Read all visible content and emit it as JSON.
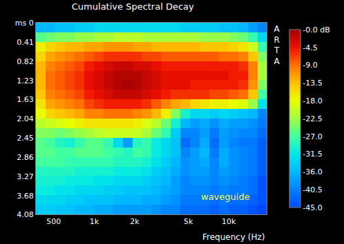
{
  "chart_data": {
    "type": "heatmap",
    "title": "Cumulative Spectral Decay",
    "x_label": "Frequency (Hz)",
    "annotations": [
      "ARTA",
      "waveguide"
    ],
    "log": "x",
    "grid": true,
    "x": [
      369,
      435,
      513,
      605,
      713,
      841,
      992,
      1170,
      1380,
      1627,
      1919,
      2263,
      2669,
      3148,
      3712,
      4378,
      5163,
      6089,
      7181,
      8469,
      9988,
      11779,
      13892,
      16383,
      19100
    ],
    "y": [
      0,
      0.204,
      0.408,
      0.612,
      0.816,
      1.02,
      1.224,
      1.428,
      1.632,
      1.836,
      2.04,
      2.244,
      2.448,
      2.652,
      2.856,
      3.06,
      3.264,
      3.468,
      3.672,
      3.876,
      4.08
    ],
    "cells": [
      [
        -36,
        -36,
        -35,
        -35,
        -34,
        -34,
        -33,
        -33,
        -33,
        -33,
        -33,
        -33,
        -33,
        -33,
        -33,
        -34,
        -34,
        -34,
        -34,
        -35,
        -35,
        -36,
        -38,
        -40
      ],
      [
        -26,
        -25,
        -24,
        -24,
        -23,
        -23,
        -22,
        -22,
        -21,
        -21,
        -21,
        -22,
        -22,
        -22,
        -22,
        -22,
        -22,
        -23,
        -23,
        -23,
        -24,
        -25,
        -28,
        -33
      ],
      [
        -17,
        -15,
        -14,
        -13,
        -13,
        -12,
        -12,
        -11,
        -11,
        -11,
        -12,
        -12,
        -13,
        -13,
        -13,
        -13,
        -13,
        -14,
        -14,
        -14,
        -15,
        -16,
        -20,
        -28
      ],
      [
        -15,
        -12,
        -11,
        -10,
        -9,
        -8,
        -7,
        -6,
        -6,
        -6,
        -6,
        -7,
        -7,
        -8,
        -8,
        -8,
        -8,
        -8,
        -8,
        -9,
        -9,
        -10,
        -14,
        -24
      ],
      [
        -13,
        -10,
        -9,
        -8,
        -7,
        -5,
        -4,
        -3,
        -2,
        -2,
        -3,
        -3,
        -4,
        -5,
        -5,
        -5,
        -5,
        -5,
        -5,
        -5,
        -5,
        -6,
        -10,
        -22
      ],
      [
        -13,
        -9,
        -8,
        -7,
        -6,
        -4,
        -3,
        -2,
        -1,
        -1,
        -1,
        -2,
        -3,
        -4,
        -4,
        -4,
        -4,
        -4,
        -4,
        -4,
        -5,
        -5,
        -10,
        -22
      ],
      [
        -13,
        -9,
        -8,
        -7,
        -6,
        -4,
        -3,
        -2,
        -1,
        -0.5,
        -1,
        -2,
        -3,
        -4,
        -4,
        -4,
        -5,
        -5,
        -5,
        -5,
        -5,
        -6,
        -11,
        -24
      ],
      [
        -14,
        -10,
        -9,
        -8,
        -7,
        -5,
        -4,
        -3,
        -2,
        -2,
        -2,
        -3,
        -4,
        -5,
        -6,
        -6,
        -6,
        -6,
        -7,
        -7,
        -8,
        -9,
        -14,
        -27
      ],
      [
        -16,
        -12,
        -11,
        -10,
        -9,
        -7,
        -6,
        -5,
        -5,
        -5,
        -5,
        -6,
        -8,
        -10,
        -12,
        -13,
        -15,
        -16,
        -17,
        -17,
        -18,
        -19,
        -23,
        -32
      ],
      [
        -18,
        -15,
        -14,
        -13,
        -12,
        -10,
        -10,
        -9,
        -9,
        -9,
        -10,
        -11,
        -13,
        -17,
        -24,
        -30,
        -33,
        -33,
        -34,
        -33,
        -34,
        -35,
        -36,
        -40
      ],
      [
        -21,
        -20,
        -19,
        -18,
        -17,
        -16,
        -16,
        -16,
        -16,
        -16,
        -17,
        -19,
        -21,
        -25,
        -30,
        -36,
        -38,
        -37,
        -39,
        -37,
        -38,
        -38,
        -39,
        -41
      ],
      [
        -24,
        -24,
        -25,
        -24,
        -23,
        -22,
        -21,
        -20,
        -20,
        -20,
        -20,
        -22,
        -25,
        -28,
        -34,
        -40,
        -40,
        -38,
        -41,
        -38,
        -39,
        -40,
        -40,
        -42
      ],
      [
        -26,
        -27,
        -29,
        -30,
        -28,
        -26,
        -26,
        -28,
        -33,
        -38,
        -29,
        -28,
        -31,
        -33,
        -35,
        -42,
        -40,
        -37,
        -42,
        -38,
        -40,
        -41,
        -41,
        -43
      ],
      [
        -26,
        -26,
        -27,
        -27,
        -26,
        -26,
        -26,
        -27,
        -28,
        -29,
        -27,
        -28,
        -31,
        -33,
        -35,
        -40,
        -38,
        -36,
        -41,
        -37,
        -39,
        -40,
        -41,
        -43
      ],
      [
        -27,
        -27,
        -27,
        -28,
        -28,
        -28,
        -28,
        -28,
        -29,
        -29,
        -29,
        -30,
        -32,
        -34,
        -36,
        -39,
        -38,
        -37,
        -40,
        -37,
        -39,
        -40,
        -41,
        -43
      ],
      [
        -29,
        -29,
        -29,
        -29,
        -30,
        -30,
        -30,
        -30,
        -31,
        -31,
        -31,
        -32,
        -34,
        -35,
        -37,
        -39,
        -38,
        -38,
        -40,
        -38,
        -39,
        -40,
        -41,
        -43
      ],
      [
        -30,
        -30,
        -30,
        -31,
        -31,
        -31,
        -32,
        -32,
        -33,
        -33,
        -33,
        -34,
        -35,
        -36,
        -38,
        -40,
        -39,
        -39,
        -40,
        -39,
        -40,
        -41,
        -42,
        -44
      ],
      [
        -31,
        -31,
        -32,
        -32,
        -33,
        -33,
        -33,
        -34,
        -34,
        -35,
        -35,
        -35,
        -36,
        -37,
        -38,
        -40,
        -40,
        -40,
        -41,
        -40,
        -41,
        -41,
        -42,
        -44
      ],
      [
        -33,
        -33,
        -33,
        -34,
        -34,
        -35,
        -35,
        -35,
        -36,
        -36,
        -36,
        -37,
        -37,
        -38,
        -39,
        -41,
        -41,
        -41,
        -42,
        -41,
        -42,
        -42,
        -43,
        -44
      ],
      [
        -34,
        -34,
        -35,
        -35,
        -36,
        -36,
        -37,
        -37,
        -38,
        -38,
        -38,
        -38,
        -39,
        -40,
        -40,
        -42,
        -42,
        -42,
        -43,
        -42,
        -43,
        -43,
        -44,
        -45
      ]
    ],
    "xlim": [
      369,
      19100
    ],
    "xticks": [
      500,
      {
        "value": 1000,
        "label": "1k"
      },
      {
        "value": 2000,
        "label": "2k"
      },
      {
        "value": 5000,
        "label": "5k"
      },
      {
        "value": 10000,
        "label": "10k"
      }
    ],
    "ylim": [
      4.08,
      0
    ],
    "yticks": [
      {
        "value": 0,
        "label": "ms 0"
      },
      0.41,
      0.82,
      1.23,
      1.63,
      2.04,
      2.45,
      2.86,
      3.27,
      3.68,
      4.08
    ],
    "colorbar": {
      "range": [
        -45,
        0
      ],
      "ticks": [
        {
          "value": 0,
          "label": "-0.0 dB"
        },
        -4.5,
        {
          "value": -9,
          "label": "-9.0"
        },
        -13.5,
        {
          "value": -18,
          "label": "-18.0"
        },
        -22.5,
        {
          "value": -27,
          "label": "-27.0"
        },
        -31.5,
        {
          "value": -36,
          "label": "-36.0"
        },
        -40.5,
        {
          "value": -45,
          "label": "-45.0"
        }
      ]
    }
  }
}
